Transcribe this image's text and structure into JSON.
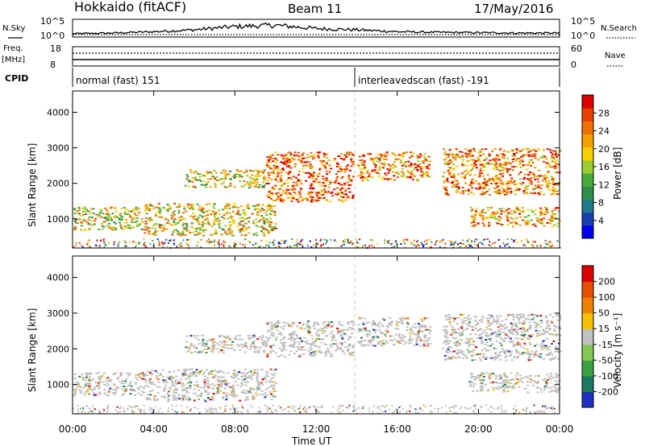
{
  "header": {
    "station": "Hokkaido (fitACF)",
    "beam": "Beam 11",
    "date": "17/May/2016"
  },
  "strip_labels": {
    "nsky": "N.Sky",
    "freq": "Freq.",
    "freq_unit": "[MHz]",
    "cpid": "CPID",
    "nsearch": "N.Search",
    "nave": "Nave"
  },
  "noise_axis": {
    "top_left": "10^5",
    "bottom_left": "10^0",
    "top_right": "10^5",
    "bottom_right": "10^0"
  },
  "freq_axis": {
    "left_ticks": [
      "18",
      "8"
    ],
    "right_ticks": [
      "60",
      "0"
    ]
  },
  "cpid_segments": [
    {
      "label": "normal (fast) 151",
      "start_hour": 0
    },
    {
      "label": "interleavedscan (fast) -191",
      "start_hour": 14
    }
  ],
  "chart_data": [
    {
      "type": "heatmap",
      "panel": "power",
      "ylabel": "Slant Range [km]",
      "ylim": [
        180,
        4600
      ],
      "yticks": [
        1000,
        2000,
        3000,
        4000
      ],
      "xlim": [
        0,
        24
      ],
      "colorbar": {
        "label": "Power [dB]",
        "range": [
          0,
          32
        ],
        "ticks": [
          "4",
          "8",
          "12",
          "16",
          "20",
          "24",
          "28"
        ],
        "tick_values": [
          4,
          8,
          12,
          16,
          20,
          24,
          28
        ],
        "colors": [
          "#0000ee",
          "#1a3fb0",
          "#1f7a8a",
          "#2f8f4a",
          "#4aaa3a",
          "#9acd32",
          "#f5d000",
          "#f5a000",
          "#f07000",
          "#e84000",
          "#dd0000"
        ]
      },
      "echo_bands": [
        {
          "start_hour": 0.0,
          "end_hour": 3.5,
          "range_low": 700,
          "range_high": 1350,
          "level": 0.55
        },
        {
          "start_hour": 3.5,
          "end_hour": 10.0,
          "range_low": 550,
          "range_high": 1450,
          "level": 0.6
        },
        {
          "start_hour": 5.5,
          "end_hour": 9.5,
          "range_low": 1900,
          "range_high": 2400,
          "level": 0.55
        },
        {
          "start_hour": 9.5,
          "end_hour": 13.8,
          "range_low": 1500,
          "range_high": 2900,
          "level": 0.8
        },
        {
          "start_hour": 14.0,
          "end_hour": 17.6,
          "range_low": 2100,
          "range_high": 2900,
          "level": 0.75
        },
        {
          "start_hour": 18.2,
          "end_hour": 24.0,
          "range_low": 1700,
          "range_high": 3000,
          "level": 0.75
        },
        {
          "start_hour": 19.5,
          "end_hour": 24.0,
          "range_low": 800,
          "range_high": 1350,
          "level": 0.7
        }
      ]
    },
    {
      "type": "heatmap",
      "panel": "velocity",
      "ylabel": "Slant Range [km]",
      "ylim": [
        180,
        4600
      ],
      "yticks": [
        1000,
        2000,
        3000,
        4000
      ],
      "xlim": [
        0,
        24
      ],
      "xticks": [
        "00:00",
        "04:00",
        "08:00",
        "12:00",
        "16:00",
        "20:00",
        "00:00"
      ],
      "xlabel": "Time UT",
      "colorbar": {
        "label": "Velocity [m s⁻¹]",
        "range": [
          -250,
          250
        ],
        "ticks": [
          "200",
          "100",
          "50",
          "15",
          "-15",
          "-50",
          "-100",
          "-200"
        ],
        "colors": [
          "#2030c0",
          "#1a7a60",
          "#3aa040",
          "#80c850",
          "#c0c0c0",
          "#f5c000",
          "#f08000",
          "#e85000",
          "#dd0000"
        ]
      },
      "echo_bands": [
        {
          "start_hour": 0.0,
          "end_hour": 3.5,
          "range_low": 700,
          "range_high": 1350
        },
        {
          "start_hour": 3.5,
          "end_hour": 10.0,
          "range_low": 550,
          "range_high": 1450
        },
        {
          "start_hour": 5.5,
          "end_hour": 9.5,
          "range_low": 1900,
          "range_high": 2400
        },
        {
          "start_hour": 9.5,
          "end_hour": 13.8,
          "range_low": 1800,
          "range_high": 2800
        },
        {
          "start_hour": 14.0,
          "end_hour": 17.6,
          "range_low": 2100,
          "range_high": 2900
        },
        {
          "start_hour": 18.2,
          "end_hour": 24.0,
          "range_low": 1700,
          "range_high": 3000
        },
        {
          "start_hour": 19.5,
          "end_hour": 24.0,
          "range_low": 800,
          "range_high": 1350
        }
      ]
    }
  ],
  "noise_profile": [
    {
      "hour": 0,
      "level": 0.2
    },
    {
      "hour": 2,
      "level": 0.25
    },
    {
      "hour": 4,
      "level": 0.35
    },
    {
      "hour": 6,
      "level": 0.5
    },
    {
      "hour": 8,
      "level": 0.75
    },
    {
      "hour": 10,
      "level": 0.85
    },
    {
      "hour": 12,
      "level": 0.6
    },
    {
      "hour": 14,
      "level": 0.5
    },
    {
      "hour": 16,
      "level": 0.35
    },
    {
      "hour": 18,
      "level": 0.3
    },
    {
      "hour": 20,
      "level": 0.28
    },
    {
      "hour": 22,
      "level": 0.25
    },
    {
      "hour": 24,
      "level": 0.25
    }
  ]
}
